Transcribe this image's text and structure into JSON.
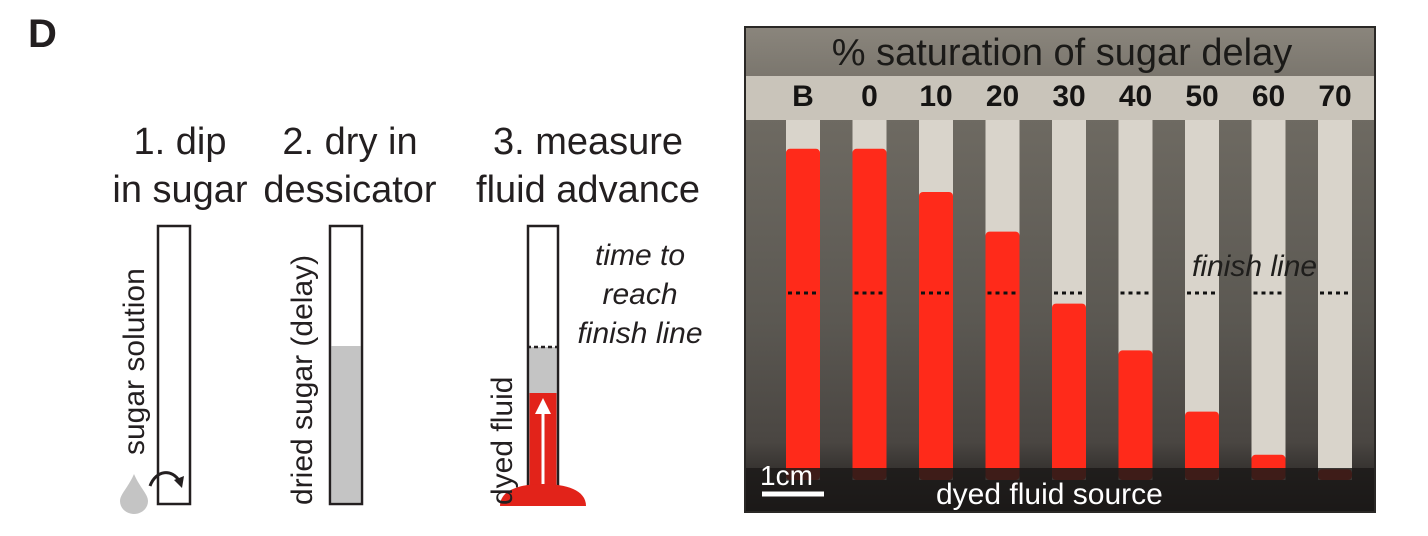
{
  "panel_letter": "D",
  "steps": [
    {
      "title_line1": "1. dip",
      "title_line2": "in sugar",
      "vertical_label": "sugar solution"
    },
    {
      "title_line1": "2. dry in",
      "title_line2": "dessicator",
      "vertical_label": "dried sugar (delay)"
    },
    {
      "title_line1": "3. measure",
      "title_line2": "fluid advance",
      "vertical_label": "dyed fluid"
    }
  ],
  "time_note": [
    "time to",
    "reach",
    "finish line"
  ],
  "photo": {
    "title": "% saturation of sugar delay",
    "columns": [
      "B",
      "0",
      "10",
      "20",
      "30",
      "40",
      "50",
      "60",
      "70"
    ],
    "fluid_level_fraction": [
      0.92,
      0.92,
      0.8,
      0.69,
      0.49,
      0.36,
      0.19,
      0.07,
      0.03
    ],
    "finish_label": "finish line",
    "scale_label": "1cm",
    "source_label": "dyed fluid source",
    "colors": {
      "fluid": "#ff2a1a",
      "strip": "#d9d4cb",
      "background": "#5e5b55"
    }
  },
  "colors": {
    "sugar_gray": "#c4c4c4",
    "dyed_red": "#e2231a",
    "outline": "#231f20"
  }
}
